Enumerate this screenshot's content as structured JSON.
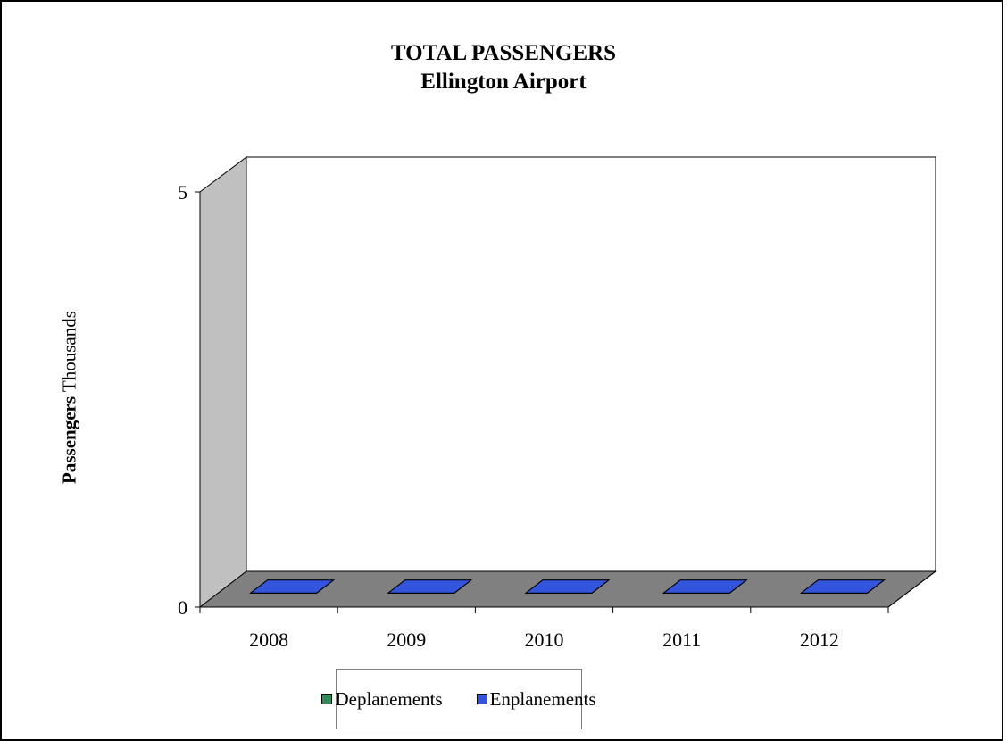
{
  "chart_data": {
    "type": "bar",
    "title": "TOTAL PASSENGERS",
    "subtitle": "Ellington Airport",
    "ylabel_bold": "Passengers",
    "ylabel_unit": "Thousands",
    "categories": [
      "2008",
      "2009",
      "2010",
      "2011",
      "2012"
    ],
    "series": [
      {
        "name": "Deplanements",
        "color": "#2e8b57",
        "values": [
          0,
          0,
          0,
          0,
          0
        ]
      },
      {
        "name": "Enplanements",
        "color": "#3355dd",
        "values": [
          0,
          0,
          0,
          0,
          0
        ]
      }
    ],
    "ylim": [
      0,
      5
    ],
    "yticks": [
      "0",
      "5"
    ],
    "grid": false,
    "legend_position": "bottom",
    "style": "3d"
  }
}
